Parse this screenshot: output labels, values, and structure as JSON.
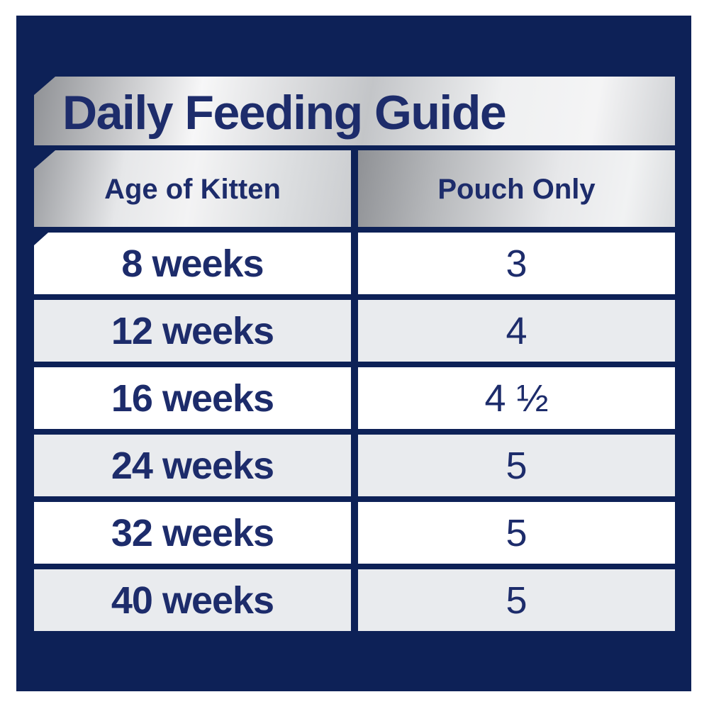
{
  "title": "Daily Feeding Guide",
  "table": {
    "columns": [
      {
        "label": "Age of Kitten"
      },
      {
        "label": "Pouch Only"
      }
    ],
    "rows": [
      {
        "age": "8 weeks",
        "pouches": "3"
      },
      {
        "age": "12 weeks",
        "pouches": "4"
      },
      {
        "age": "16 weeks",
        "pouches": "4 ½"
      },
      {
        "age": "24 weeks",
        "pouches": "5"
      },
      {
        "age": "32 weeks",
        "pouches": "5"
      },
      {
        "age": "40 weeks",
        "pouches": "5"
      }
    ]
  },
  "colors": {
    "panel_navy": "#0d2157",
    "text_navy": "#1d2c6b",
    "row_white": "#ffffff",
    "row_gray": "#e9ebee",
    "silver_dark": "#8f9195",
    "silver_light": "#f5f5f6"
  }
}
